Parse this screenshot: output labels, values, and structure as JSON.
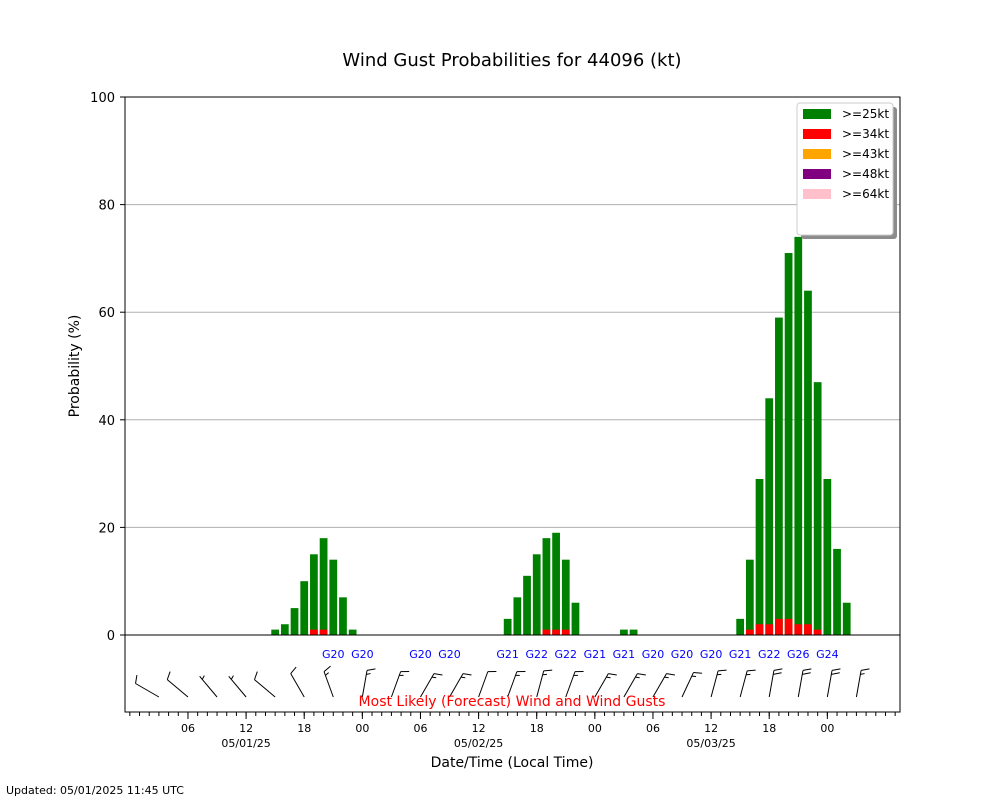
{
  "chart_data": {
    "type": "bar",
    "title": "Wind Gust Probabilities for 44096 (kt)",
    "ylabel": "Probability (%)",
    "xlabel": "Date/Time (Local Time)",
    "ylim": [
      0,
      100
    ],
    "yticks": [
      "0",
      "20",
      "40",
      "60",
      "80",
      "100"
    ],
    "grid": "horizontal",
    "legend_position": "top-right",
    "x_start": "05/01/25 00",
    "x_step_hours": 1,
    "xticks": [
      {
        "hour": 6,
        "label": "06",
        "date": ""
      },
      {
        "hour": 12,
        "label": "12",
        "date": "05/01/25"
      },
      {
        "hour": 18,
        "label": "18",
        "date": ""
      },
      {
        "hour": 24,
        "label": "00",
        "date": ""
      },
      {
        "hour": 30,
        "label": "06",
        "date": ""
      },
      {
        "hour": 36,
        "label": "12",
        "date": "05/02/25"
      },
      {
        "hour": 42,
        "label": "18",
        "date": ""
      },
      {
        "hour": 48,
        "label": "00",
        "date": ""
      },
      {
        "hour": 54,
        "label": "06",
        "date": ""
      },
      {
        "hour": 60,
        "label": "12",
        "date": "05/03/25"
      },
      {
        "hour": 66,
        "label": "18",
        "date": ""
      },
      {
        "hour": 72,
        "label": "00",
        "date": ""
      }
    ],
    "series": [
      {
        "name": ">=25kt",
        "color": "#008000",
        "points": [
          [
            15,
            1
          ],
          [
            16,
            2
          ],
          [
            17,
            5
          ],
          [
            18,
            10
          ],
          [
            19,
            15
          ],
          [
            20,
            18
          ],
          [
            21,
            14
          ],
          [
            22,
            7
          ],
          [
            23,
            1
          ],
          [
            39,
            3
          ],
          [
            40,
            7
          ],
          [
            41,
            11
          ],
          [
            42,
            15
          ],
          [
            43,
            18
          ],
          [
            44,
            19
          ],
          [
            45,
            14
          ],
          [
            46,
            6
          ],
          [
            51,
            1
          ],
          [
            52,
            1
          ],
          [
            63,
            3
          ],
          [
            64,
            14
          ],
          [
            65,
            29
          ],
          [
            66,
            44
          ],
          [
            67,
            59
          ],
          [
            68,
            71
          ],
          [
            69,
            74
          ],
          [
            70,
            64
          ],
          [
            71,
            47
          ],
          [
            72,
            29
          ],
          [
            73,
            16
          ],
          [
            74,
            6
          ]
        ]
      },
      {
        "name": ">=34kt",
        "color": "#ff0000",
        "points": [
          [
            19,
            1
          ],
          [
            20,
            1
          ],
          [
            43,
            1
          ],
          [
            44,
            1
          ],
          [
            45,
            1
          ],
          [
            64,
            1
          ],
          [
            65,
            2
          ],
          [
            66,
            2
          ],
          [
            67,
            3
          ],
          [
            68,
            3
          ],
          [
            69,
            2
          ],
          [
            70,
            2
          ],
          [
            71,
            1
          ]
        ]
      },
      {
        "name": ">=43kt",
        "color": "#ffa500",
        "points": []
      },
      {
        "name": ">=48kt",
        "color": "#800080",
        "points": []
      },
      {
        "name": ">=64kt",
        "color": "#ffc0cb",
        "points": []
      }
    ],
    "wind_panel": {
      "label": "Most Likely (Forecast) Wind and Wind Gusts",
      "gusts": [
        {
          "hour": 21,
          "text": "G20"
        },
        {
          "hour": 24,
          "text": "G20"
        },
        {
          "hour": 30,
          "text": "G20"
        },
        {
          "hour": 33,
          "text": "G20"
        },
        {
          "hour": 39,
          "text": "G21"
        },
        {
          "hour": 42,
          "text": "G22"
        },
        {
          "hour": 45,
          "text": "G22"
        },
        {
          "hour": 48,
          "text": "G21"
        },
        {
          "hour": 51,
          "text": "G21"
        },
        {
          "hour": 54,
          "text": "G20"
        },
        {
          "hour": 57,
          "text": "G20"
        },
        {
          "hour": 60,
          "text": "G20"
        },
        {
          "hour": 63,
          "text": "G21"
        },
        {
          "hour": 66,
          "text": "G22"
        },
        {
          "hour": 69,
          "text": "G26"
        },
        {
          "hour": 72,
          "text": "G24"
        }
      ],
      "barbs": [
        {
          "hour": 3,
          "dir": 300,
          "speed": 10
        },
        {
          "hour": 6,
          "dir": 310,
          "speed": 10
        },
        {
          "hour": 9,
          "dir": 320,
          "speed": 5
        },
        {
          "hour": 12,
          "dir": 320,
          "speed": 5
        },
        {
          "hour": 15,
          "dir": 310,
          "speed": 10
        },
        {
          "hour": 18,
          "dir": 330,
          "speed": 10
        },
        {
          "hour": 21,
          "dir": 340,
          "speed": 15
        },
        {
          "hour": 24,
          "dir": 10,
          "speed": 15
        },
        {
          "hour": 27,
          "dir": 20,
          "speed": 15
        },
        {
          "hour": 30,
          "dir": 30,
          "speed": 15
        },
        {
          "hour": 33,
          "dir": 30,
          "speed": 15
        },
        {
          "hour": 36,
          "dir": 20,
          "speed": 10
        },
        {
          "hour": 39,
          "dir": 20,
          "speed": 15
        },
        {
          "hour": 42,
          "dir": 15,
          "speed": 15
        },
        {
          "hour": 45,
          "dir": 20,
          "speed": 15
        },
        {
          "hour": 48,
          "dir": 30,
          "speed": 15
        },
        {
          "hour": 51,
          "dir": 30,
          "speed": 15
        },
        {
          "hour": 54,
          "dir": 30,
          "speed": 15
        },
        {
          "hour": 57,
          "dir": 25,
          "speed": 15
        },
        {
          "hour": 60,
          "dir": 15,
          "speed": 15
        },
        {
          "hour": 63,
          "dir": 15,
          "speed": 15
        },
        {
          "hour": 66,
          "dir": 10,
          "speed": 20
        },
        {
          "hour": 69,
          "dir": 10,
          "speed": 20
        },
        {
          "hour": 72,
          "dir": 10,
          "speed": 20
        },
        {
          "hour": 75,
          "dir": 10,
          "speed": 15
        }
      ]
    }
  },
  "footer": {
    "updated": "Updated: 05/01/2025 11:45 UTC"
  }
}
